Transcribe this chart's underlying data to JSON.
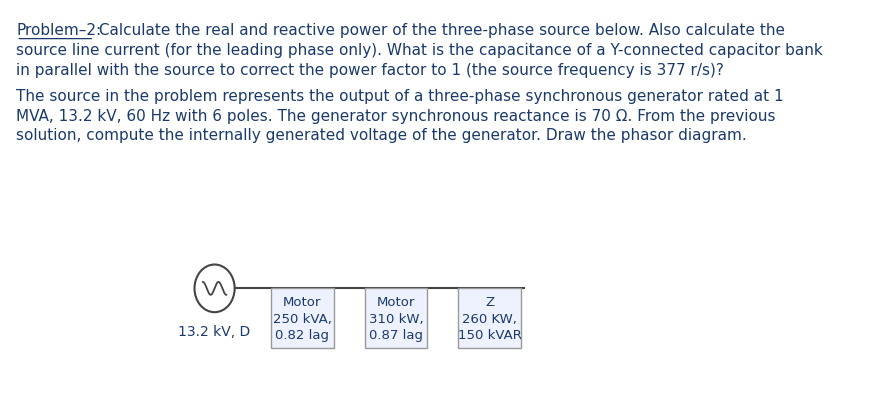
{
  "bg_color": "#ffffff",
  "text_color": "#1a3a6b",
  "title_underline": "Problem–2:",
  "title_rest": " Calculate the real and reactive power of the three-phase source below. Also calculate the",
  "line2": "source line current (for the leading phase only). What is the capacitance of a Y-connected capacitor bank",
  "line3": "in parallel with the source to correct the power factor to 1 (the source frequency is 377 r/s)?",
  "para2_line1": "The source in the problem represents the output of a three-phase synchronous generator rated at 1",
  "para2_line2": "MVA, 13.2 kV, 60 Hz with 6 poles. The generator synchronous reactance is 70 Ω. From the previous",
  "para2_line3": "solution, compute the internally generated voltage of the generator. Draw the phasor diagram.",
  "source_label": "13.2 kV, D",
  "box1_lines": [
    "Motor",
    "250 kVA,",
    "0.82 lag"
  ],
  "box2_lines": [
    "Motor",
    "310 kW,",
    "0.87 lag"
  ],
  "box3_lines": [
    "Z",
    "260 KW,",
    "150 kVAR"
  ],
  "font_size_text": 11,
  "font_size_diagram": 10
}
